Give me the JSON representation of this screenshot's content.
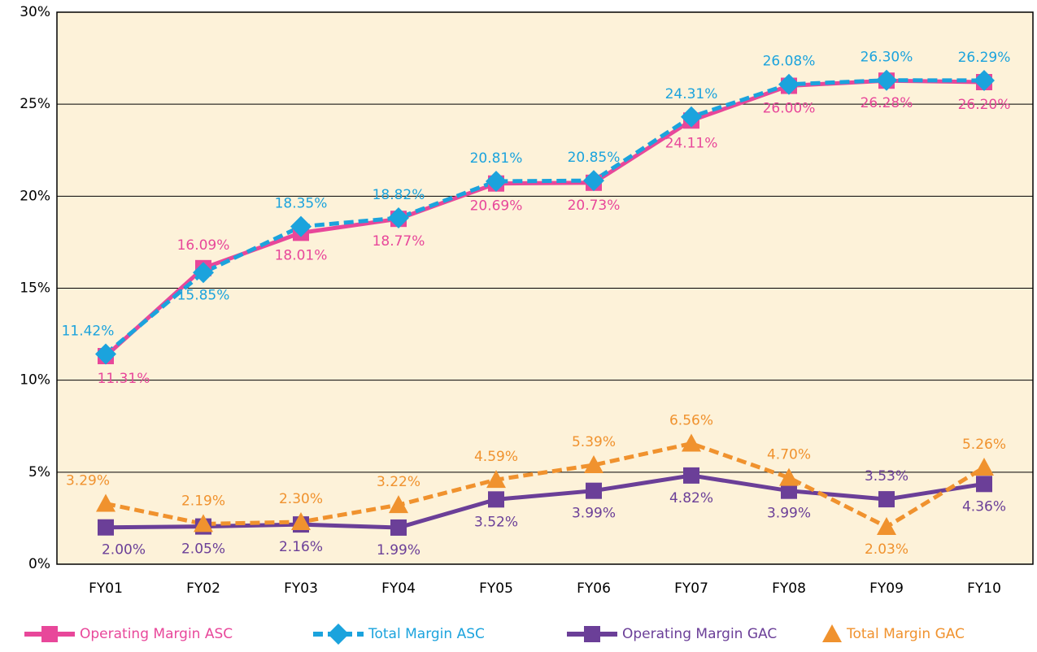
{
  "chart_data": {
    "type": "line",
    "categories": [
      "FY01",
      "FY02",
      "FY03",
      "FY04",
      "FY05",
      "FY06",
      "FY07",
      "FY08",
      "FY09",
      "FY10"
    ],
    "ylim": [
      0,
      30
    ],
    "yticks": [
      {
        "value": 0,
        "label": "0%"
      },
      {
        "value": 5,
        "label": "5%"
      },
      {
        "value": 10,
        "label": "10%"
      },
      {
        "value": 15,
        "label": "15%"
      },
      {
        "value": 20,
        "label": "20%"
      },
      {
        "value": 25,
        "label": "25%"
      },
      {
        "value": 30,
        "label": "30%"
      }
    ],
    "grid": true,
    "legend": "bottom",
    "series": [
      {
        "name": "Operating Margin ASC",
        "color": "#e8479a",
        "marker": "square",
        "dashed": false,
        "values": [
          11.31,
          16.09,
          18.01,
          18.77,
          20.69,
          20.73,
          24.11,
          26.0,
          26.28,
          26.2
        ],
        "value_labels": [
          "11.31%",
          "16.09%",
          "18.01%",
          "18.77%",
          "20.69%",
          "20.73%",
          "24.11%",
          "26.00%",
          "26.28%",
          "26.20%"
        ]
      },
      {
        "name": "Total Margin ASC",
        "color": "#1ba3dd",
        "marker": "diamond",
        "dashed": true,
        "values": [
          11.42,
          15.85,
          18.35,
          18.82,
          20.81,
          20.85,
          24.31,
          26.08,
          26.3,
          26.29
        ],
        "value_labels": [
          "11.42%",
          "15.85%",
          "18.35%",
          "18.82%",
          "20.81%",
          "20.85%",
          "24.31%",
          "26.08%",
          "26.30%",
          "26.29%"
        ]
      },
      {
        "name": "Operating Margin GAC",
        "color": "#6b3f98",
        "marker": "square",
        "dashed": false,
        "values": [
          2.0,
          2.05,
          2.16,
          1.99,
          3.52,
          3.99,
          4.82,
          3.99,
          3.53,
          4.36
        ],
        "value_labels": [
          "2.00%",
          "2.05%",
          "2.16%",
          "1.99%",
          "3.52%",
          "3.99%",
          "4.82%",
          "3.99%",
          "3.53%",
          "4.36%"
        ]
      },
      {
        "name": "Total Margin GAC",
        "color": "#f0922e",
        "marker": "triangle",
        "dashed": true,
        "values": [
          3.29,
          2.19,
          2.3,
          3.22,
          4.59,
          5.39,
          6.56,
          4.7,
          2.03,
          5.26
        ],
        "value_labels": [
          "3.29%",
          "2.19%",
          "2.30%",
          "3.22%",
          "4.59%",
          "5.39%",
          "6.56%",
          "4.70%",
          "2.03%",
          "5.26%"
        ]
      }
    ]
  }
}
